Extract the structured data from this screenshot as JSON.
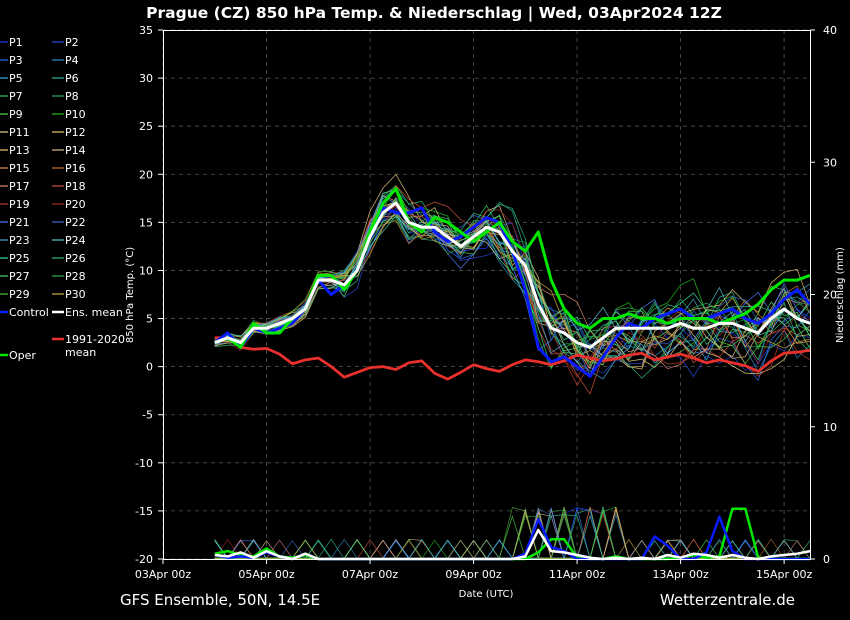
{
  "chart_data": {
    "type": "line",
    "title": "Prague  (CZ)  850 hPa Temp. & Niederschlag | Wed, 03Apr2024 12Z",
    "ylabel": "850 hPa Temp. (°C)",
    "y2label": "Niederschlag (mm)",
    "xlabel": "Date (UTC)",
    "ylim": [
      -20,
      35
    ],
    "y2lim": [
      0,
      40
    ],
    "yticks": [
      35,
      30,
      25,
      20,
      15,
      10,
      5,
      0,
      -5,
      -10,
      -15,
      -20
    ],
    "y2ticks": [
      40,
      30,
      20,
      10,
      0
    ],
    "xlim": [
      0,
      12.5
    ],
    "xticks": [
      {
        "label": "03Apr 00z",
        "day": 0
      },
      {
        "label": "05Apr 00z",
        "day": 2
      },
      {
        "label": "07Apr 00z",
        "day": 4
      },
      {
        "label": "09Apr 00z",
        "day": 6
      },
      {
        "label": "11Apr 00z",
        "day": 8
      },
      {
        "label": "13Apr 00z",
        "day": 10
      },
      {
        "label": "15Apr 00z",
        "day": 12
      }
    ],
    "grid": true,
    "legend_position": "left",
    "footer_left": "GFS Ensemble, 50N, 14.5E",
    "footer_right": "Wetterzentrale.de",
    "legend": [
      {
        "name": "P1",
        "color": "#1c3cff"
      },
      {
        "name": "P2",
        "color": "#2a48d8"
      },
      {
        "name": "P3",
        "color": "#3470ff"
      },
      {
        "name": "P4",
        "color": "#2a8cc8"
      },
      {
        "name": "P5",
        "color": "#33b4e0"
      },
      {
        "name": "P6",
        "color": "#2fb89a"
      },
      {
        "name": "P7",
        "color": "#2ecc71"
      },
      {
        "name": "P8",
        "color": "#27ae60"
      },
      {
        "name": "P9",
        "color": "#52d852"
      },
      {
        "name": "P10",
        "color": "#22c322"
      },
      {
        "name": "P11",
        "color": "#e0d28a"
      },
      {
        "name": "P12",
        "color": "#e3c46a"
      },
      {
        "name": "P13",
        "color": "#e8c47f"
      },
      {
        "name": "P14",
        "color": "#d9b98c"
      },
      {
        "name": "P15",
        "color": "#e69a5a"
      },
      {
        "name": "P16",
        "color": "#c8762a"
      },
      {
        "name": "P17",
        "color": "#e08a70"
      },
      {
        "name": "P18",
        "color": "#d0503c"
      },
      {
        "name": "P19",
        "color": "#c04024"
      },
      {
        "name": "P20",
        "color": "#a02c1c"
      },
      {
        "name": "P21",
        "color": "#4a7cff"
      },
      {
        "name": "P22",
        "color": "#3a6cd0"
      },
      {
        "name": "P23",
        "color": "#46a8d8"
      },
      {
        "name": "P24",
        "color": "#5ac8d0"
      },
      {
        "name": "P25",
        "color": "#3ad8a0"
      },
      {
        "name": "P26",
        "color": "#30b878"
      },
      {
        "name": "P27",
        "color": "#48d868"
      },
      {
        "name": "P28",
        "color": "#30a848"
      },
      {
        "name": "P29",
        "color": "#58c040"
      },
      {
        "name": "P30",
        "color": "#c8b040"
      },
      {
        "name": "Control",
        "color": "#0a1aff",
        "bold": true
      },
      {
        "name": "Ens. mean",
        "color": "#ffffff",
        "bold": true
      },
      {
        "name": "1991-2020 mean",
        "color": "#e8302c",
        "bold": true
      },
      {
        "name": "Oper",
        "color": "#00e800",
        "bold": true
      }
    ],
    "series_days": {
      "start": 1.0,
      "step": 0.25
    },
    "series": [
      {
        "name": "Oper",
        "values": [
          2.5,
          3,
          2,
          4.5,
          3.5,
          3.5,
          5,
          6,
          9.5,
          9.5,
          8,
          10,
          14,
          17,
          18.5,
          15,
          14,
          15.5,
          15,
          14,
          13,
          14,
          15,
          13,
          12,
          14,
          9,
          6,
          4.5,
          4,
          5,
          5,
          5.5,
          5,
          5,
          4.5,
          5,
          5,
          5,
          4.5,
          5,
          5.5,
          6.5,
          8,
          9,
          9,
          9.5
        ]
      },
      {
        "name": "Control",
        "values": [
          2.5,
          3.5,
          2,
          4,
          3.5,
          4,
          4.5,
          6,
          9,
          7.5,
          8.5,
          10,
          14,
          16.5,
          16,
          16,
          16.5,
          14,
          13,
          13.5,
          14.5,
          15.5,
          15,
          12,
          8,
          2,
          0.5,
          1,
          0,
          -1,
          1,
          3,
          4.5,
          4,
          5,
          5.5,
          6,
          5,
          5,
          5.5,
          6,
          5,
          4.5,
          5.5,
          7,
          8,
          6.5
        ]
      },
      {
        "name": "Ens. mean",
        "values": [
          2.5,
          3,
          2.5,
          4,
          4,
          4.5,
          5,
          6,
          9,
          9,
          8.5,
          10,
          13.5,
          16,
          17,
          15,
          14.5,
          14.5,
          13.5,
          12.5,
          13.5,
          14.5,
          14,
          12,
          10.5,
          6.5,
          4,
          3.5,
          2.5,
          2,
          3,
          4,
          4,
          4,
          4,
          4,
          4.5,
          4,
          4,
          4.5,
          4.5,
          4,
          3.5,
          5,
          6,
          5,
          4.5
        ]
      },
      {
        "name": "1991-2020 mean",
        "values": [
          3,
          3,
          2,
          1.8,
          1.9,
          1.3,
          0.3,
          0.7,
          0.9,
          0,
          -1.1,
          -0.6,
          -0.1,
          0,
          -0.3,
          0.4,
          0.6,
          -0.7,
          -1.3,
          -0.6,
          0.2,
          -0.2,
          -0.5,
          0.2,
          0.7,
          0.5,
          0.2,
          0.6,
          1.2,
          0.9,
          0.6,
          0.8,
          1.2,
          1.4,
          0.7,
          1,
          1.3,
          0.9,
          0.4,
          0.7,
          0.4,
          0.1,
          -0.5,
          0.6,
          1.4,
          1.5,
          1.7
        ]
      }
    ],
    "precip_series": [
      {
        "name": "Ens. mean precip",
        "values": [
          0.3,
          0.2,
          0.5,
          0.1,
          0.6,
          0.2,
          0,
          0.4,
          0,
          0,
          0,
          0,
          0,
          0,
          0,
          0,
          0,
          0,
          0,
          0,
          0,
          0,
          0,
          0,
          0.2,
          2.2,
          0.6,
          0.5,
          0.3,
          0.1,
          0,
          0.1,
          0,
          0.1,
          0,
          0.3,
          0.1,
          0.4,
          0.3,
          0.1,
          0.3,
          0.1,
          0,
          0.2,
          0.3,
          0.4,
          0.6
        ]
      },
      {
        "name": "Oper precip",
        "values": [
          0.4,
          0.6,
          0.3,
          0.2,
          0.8,
          0.2,
          0.1,
          0.3,
          0,
          0,
          0,
          0,
          0,
          0,
          0,
          0,
          0,
          0,
          0,
          0,
          0,
          0,
          0,
          0,
          0,
          0.5,
          1.5,
          1.5,
          0.1,
          0,
          0,
          0.2,
          0,
          0,
          0,
          0,
          0.1,
          0.3,
          0.1,
          0.2,
          3.8,
          3.8,
          0.1,
          0,
          0,
          0,
          0
        ]
      },
      {
        "name": "Control precip",
        "values": [
          0.3,
          0.1,
          0.2,
          0.1,
          0.5,
          0.2,
          0,
          0.4,
          0,
          0,
          0,
          0,
          0,
          0,
          0,
          0,
          0,
          0,
          0,
          0,
          0,
          0,
          0,
          0,
          0.4,
          3,
          0.9,
          0.6,
          0,
          0,
          0,
          0,
          0,
          0,
          1.7,
          1,
          0,
          0,
          0.5,
          3.2,
          0.6,
          0,
          0,
          0,
          0,
          0,
          0
        ]
      }
    ]
  }
}
